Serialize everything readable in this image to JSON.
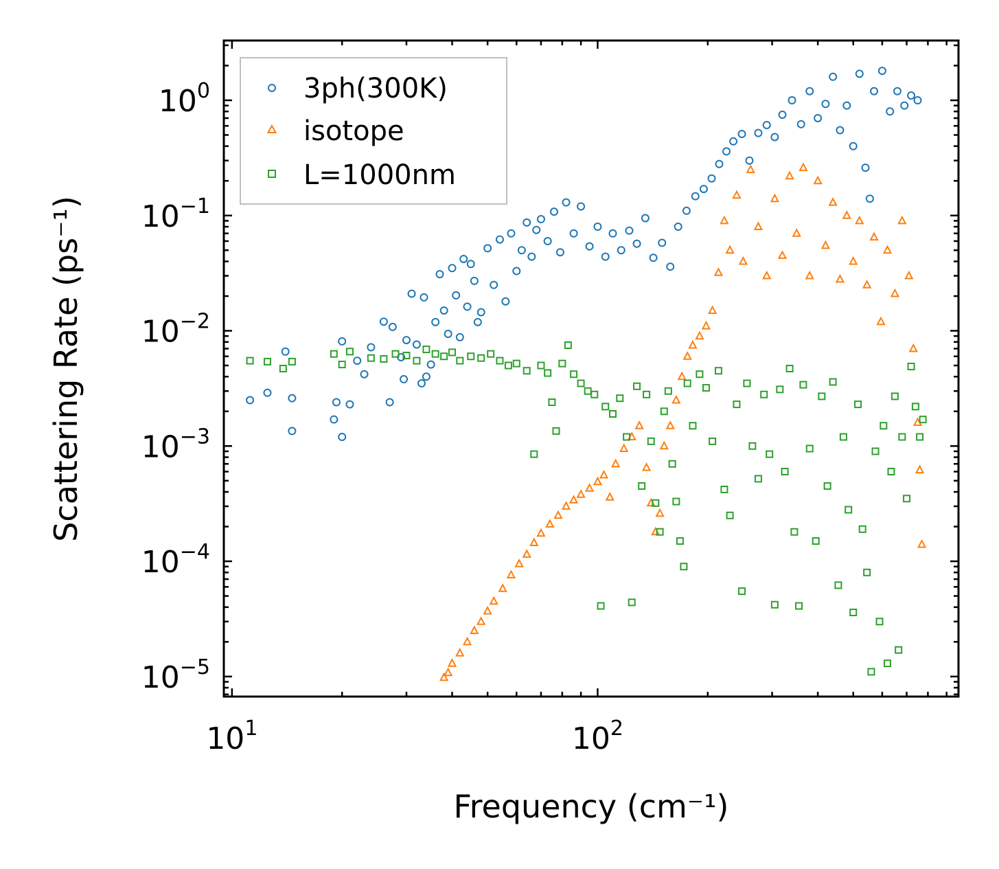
{
  "chart_data": {
    "type": "scatter",
    "xscale": "log",
    "yscale": "log",
    "xlabel": "Frequency (cm⁻¹)",
    "ylabel": "Scattering Rate (ps⁻¹)",
    "xlim": [
      9.5,
      970
    ],
    "ylim": [
      6.7e-06,
      3.3
    ],
    "legend_position": "top-left",
    "x_tick_labels": [
      {
        "value": 10,
        "base": "10",
        "exp": "1"
      },
      {
        "value": 100,
        "base": "10",
        "exp": "2"
      }
    ],
    "y_tick_labels": [
      {
        "value": 1,
        "base": "10",
        "exp": "0"
      },
      {
        "value": 0.1,
        "base": "10",
        "exp": "−1"
      },
      {
        "value": 0.01,
        "base": "10",
        "exp": "−2"
      },
      {
        "value": 0.001,
        "base": "10",
        "exp": "−3"
      },
      {
        "value": 0.0001,
        "base": "10",
        "exp": "−4"
      },
      {
        "value": 1e-05,
        "base": "10",
        "exp": "−5"
      }
    ],
    "series": [
      {
        "name": "3ph(300K)",
        "marker": "circle",
        "color": "#1f77b4",
        "points": [
          [
            11.2,
            0.0025
          ],
          [
            12.5,
            0.0029
          ],
          [
            14,
            0.0066
          ],
          [
            14.6,
            0.0026
          ],
          [
            14.6,
            0.00135
          ],
          [
            19,
            0.0017
          ],
          [
            19.3,
            0.0024
          ],
          [
            20,
            0.0081
          ],
          [
            20,
            0.0012
          ],
          [
            21,
            0.0023
          ],
          [
            22,
            0.0055
          ],
          [
            23,
            0.0042
          ],
          [
            24,
            0.0072
          ],
          [
            26,
            0.012
          ],
          [
            27,
            0.0024
          ],
          [
            27.5,
            0.0108
          ],
          [
            29,
            0.0059
          ],
          [
            29.5,
            0.0038
          ],
          [
            30,
            0.0083
          ],
          [
            31,
            0.021
          ],
          [
            32,
            0.0076
          ],
          [
            33,
            0.0035
          ],
          [
            33.5,
            0.0195
          ],
          [
            34,
            0.004
          ],
          [
            35,
            0.0051
          ],
          [
            36,
            0.0119
          ],
          [
            37,
            0.031
          ],
          [
            38,
            0.015
          ],
          [
            39,
            0.0094
          ],
          [
            40,
            0.035
          ],
          [
            41,
            0.0203
          ],
          [
            42,
            0.0088
          ],
          [
            43,
            0.042
          ],
          [
            44,
            0.0162
          ],
          [
            45,
            0.038
          ],
          [
            46,
            0.0271
          ],
          [
            47,
            0.0119
          ],
          [
            48,
            0.0145
          ],
          [
            50,
            0.052
          ],
          [
            52,
            0.025
          ],
          [
            54,
            0.062
          ],
          [
            56,
            0.018
          ],
          [
            58,
            0.07
          ],
          [
            60,
            0.033
          ],
          [
            62,
            0.05
          ],
          [
            64,
            0.087
          ],
          [
            66,
            0.044
          ],
          [
            68,
            0.075
          ],
          [
            70,
            0.093
          ],
          [
            73,
            0.06
          ],
          [
            76,
            0.108
          ],
          [
            79,
            0.048
          ],
          [
            82,
            0.13
          ],
          [
            86,
            0.07
          ],
          [
            90,
            0.12
          ],
          [
            95,
            0.054
          ],
          [
            100,
            0.08
          ],
          [
            105,
            0.044
          ],
          [
            110,
            0.07
          ],
          [
            116,
            0.05
          ],
          [
            122,
            0.074
          ],
          [
            128,
            0.057
          ],
          [
            135,
            0.095
          ],
          [
            142,
            0.043
          ],
          [
            150,
            0.058
          ],
          [
            158,
            0.036
          ],
          [
            166,
            0.08
          ],
          [
            175,
            0.11
          ],
          [
            185,
            0.147
          ],
          [
            195,
            0.17
          ],
          [
            205,
            0.21
          ],
          [
            215,
            0.28
          ],
          [
            225,
            0.36
          ],
          [
            235,
            0.44
          ],
          [
            248,
            0.51
          ],
          [
            260,
            0.3
          ],
          [
            275,
            0.52
          ],
          [
            290,
            0.61
          ],
          [
            305,
            0.48
          ],
          [
            320,
            0.75
          ],
          [
            340,
            1.0
          ],
          [
            360,
            0.62
          ],
          [
            380,
            1.2
          ],
          [
            400,
            0.7
          ],
          [
            420,
            0.93
          ],
          [
            440,
            1.6
          ],
          [
            460,
            0.55
          ],
          [
            480,
            0.9
          ],
          [
            500,
            0.4
          ],
          [
            520,
            1.7
          ],
          [
            540,
            0.26
          ],
          [
            555,
            0.14
          ],
          [
            570,
            1.2
          ],
          [
            600,
            1.8
          ],
          [
            630,
            0.8
          ],
          [
            660,
            1.2
          ],
          [
            690,
            0.9
          ],
          [
            720,
            1.1
          ],
          [
            750,
            1.0
          ]
        ]
      },
      {
        "name": "isotope",
        "marker": "triangle",
        "color": "#ff7f0e",
        "points": [
          [
            38,
            9.8e-06
          ],
          [
            39,
            1.08e-05
          ],
          [
            40,
            1.3e-05
          ],
          [
            42,
            1.6e-05
          ],
          [
            44,
            2e-05
          ],
          [
            46,
            2.5e-05
          ],
          [
            48,
            3e-05
          ],
          [
            50,
            3.7e-05
          ],
          [
            52,
            4.5e-05
          ],
          [
            55,
            5.8e-05
          ],
          [
            58,
            7.6e-05
          ],
          [
            61,
            9.5e-05
          ],
          [
            64,
            0.000115
          ],
          [
            67,
            0.000145
          ],
          [
            70,
            0.000175
          ],
          [
            74,
            0.00021
          ],
          [
            78,
            0.00025
          ],
          [
            82,
            0.0003
          ],
          [
            86,
            0.00034
          ],
          [
            90,
            0.00038
          ],
          [
            95,
            0.00043
          ],
          [
            100,
            0.00049
          ],
          [
            104,
            0.00056
          ],
          [
            108,
            0.00036
          ],
          [
            112,
            0.0007
          ],
          [
            118,
            0.00095
          ],
          [
            124,
            0.0012
          ],
          [
            130,
            0.0015
          ],
          [
            136,
            0.00065
          ],
          [
            140,
            0.00032
          ],
          [
            144,
            0.00018
          ],
          [
            148,
            0.00026
          ],
          [
            152,
            0.001
          ],
          [
            158,
            0.0015
          ],
          [
            164,
            0.0025
          ],
          [
            170,
            0.004
          ],
          [
            176,
            0.006
          ],
          [
            182,
            0.0075
          ],
          [
            190,
            0.009
          ],
          [
            198,
            0.011
          ],
          [
            206,
            0.015
          ],
          [
            214,
            0.032
          ],
          [
            222,
            0.09
          ],
          [
            230,
            0.05
          ],
          [
            240,
            0.15
          ],
          [
            250,
            0.04
          ],
          [
            262,
            0.25
          ],
          [
            275,
            0.08
          ],
          [
            290,
            0.03
          ],
          [
            305,
            0.14
          ],
          [
            320,
            0.045
          ],
          [
            335,
            0.22
          ],
          [
            350,
            0.07
          ],
          [
            365,
            0.26
          ],
          [
            380,
            0.03
          ],
          [
            400,
            0.2
          ],
          [
            420,
            0.055
          ],
          [
            440,
            0.13
          ],
          [
            460,
            0.028
          ],
          [
            480,
            0.1
          ],
          [
            500,
            0.04
          ],
          [
            520,
            0.09
          ],
          [
            545,
            0.025
          ],
          [
            570,
            0.065
          ],
          [
            595,
            0.012
          ],
          [
            620,
            0.05
          ],
          [
            650,
            0.021
          ],
          [
            680,
            0.09
          ],
          [
            710,
            0.03
          ],
          [
            730,
            0.007
          ],
          [
            750,
            0.0016
          ],
          [
            760,
            0.00062
          ],
          [
            770,
            0.00014
          ]
        ]
      },
      {
        "name": "L=1000nm",
        "marker": "square",
        "color": "#2ca02c",
        "points": [
          [
            11.2,
            0.0055
          ],
          [
            12.5,
            0.0054
          ],
          [
            13.8,
            0.0047
          ],
          [
            14.6,
            0.0054
          ],
          [
            19,
            0.0063
          ],
          [
            20,
            0.0051
          ],
          [
            21,
            0.0066
          ],
          [
            24,
            0.0058
          ],
          [
            26,
            0.0057
          ],
          [
            28,
            0.0063
          ],
          [
            30,
            0.0061
          ],
          [
            32,
            0.0055
          ],
          [
            34,
            0.0069
          ],
          [
            36,
            0.0063
          ],
          [
            38,
            0.006
          ],
          [
            40,
            0.0065
          ],
          [
            42,
            0.0055
          ],
          [
            45,
            0.006
          ],
          [
            48,
            0.0058
          ],
          [
            51,
            0.0063
          ],
          [
            54,
            0.0055
          ],
          [
            57,
            0.005
          ],
          [
            60,
            0.0052
          ],
          [
            64,
            0.0045
          ],
          [
            67,
            0.00085
          ],
          [
            70,
            0.005
          ],
          [
            73,
            0.0043
          ],
          [
            75,
            0.0024
          ],
          [
            77,
            0.00135
          ],
          [
            80,
            0.0052
          ],
          [
            83,
            0.0075
          ],
          [
            86,
            0.0042
          ],
          [
            90,
            0.0035
          ],
          [
            94,
            0.003
          ],
          [
            98,
            0.0028
          ],
          [
            102,
            4.1e-05
          ],
          [
            105,
            0.0022
          ],
          [
            110,
            0.0019
          ],
          [
            115,
            0.0026
          ],
          [
            120,
            0.0012
          ],
          [
            124,
            4.4e-05
          ],
          [
            128,
            0.0033
          ],
          [
            132,
            0.00045
          ],
          [
            136,
            0.0028
          ],
          [
            140,
            0.0011
          ],
          [
            144,
            0.00032
          ],
          [
            148,
            0.00018
          ],
          [
            152,
            0.002
          ],
          [
            156,
            0.003
          ],
          [
            160,
            0.0007
          ],
          [
            164,
            0.00033
          ],
          [
            168,
            0.00015
          ],
          [
            172,
            9e-05
          ],
          [
            176,
            0.0035
          ],
          [
            182,
            0.0015
          ],
          [
            190,
            0.0042
          ],
          [
            198,
            0.0032
          ],
          [
            206,
            0.0011
          ],
          [
            214,
            0.0045
          ],
          [
            222,
            0.00042
          ],
          [
            230,
            0.00025
          ],
          [
            240,
            0.0023
          ],
          [
            248,
            5.5e-05
          ],
          [
            256,
            0.0035
          ],
          [
            265,
            0.001
          ],
          [
            275,
            0.00052
          ],
          [
            285,
            0.0028
          ],
          [
            295,
            0.00085
          ],
          [
            305,
            4.2e-05
          ],
          [
            315,
            0.0031
          ],
          [
            325,
            0.0006
          ],
          [
            335,
            0.0047
          ],
          [
            345,
            0.00018
          ],
          [
            355,
            4.1e-05
          ],
          [
            365,
            0.0034
          ],
          [
            380,
            0.00095
          ],
          [
            395,
            0.00015
          ],
          [
            410,
            0.0027
          ],
          [
            425,
            0.00045
          ],
          [
            440,
            0.0036
          ],
          [
            455,
            6.2e-05
          ],
          [
            470,
            0.0012
          ],
          [
            485,
            0.00028
          ],
          [
            500,
            3.6e-05
          ],
          [
            515,
            0.0023
          ],
          [
            530,
            0.00019
          ],
          [
            545,
            8e-05
          ],
          [
            560,
            1.1e-05
          ],
          [
            575,
            0.0009
          ],
          [
            590,
            3e-05
          ],
          [
            605,
            0.0015
          ],
          [
            620,
            1.3e-05
          ],
          [
            635,
            0.0006
          ],
          [
            650,
            0.0027
          ],
          [
            665,
            1.7e-05
          ],
          [
            680,
            0.0012
          ],
          [
            700,
            0.00035
          ],
          [
            720,
            0.0049
          ],
          [
            740,
            0.0022
          ],
          [
            760,
            0.0012
          ],
          [
            775,
            0.0017
          ]
        ]
      }
    ]
  }
}
